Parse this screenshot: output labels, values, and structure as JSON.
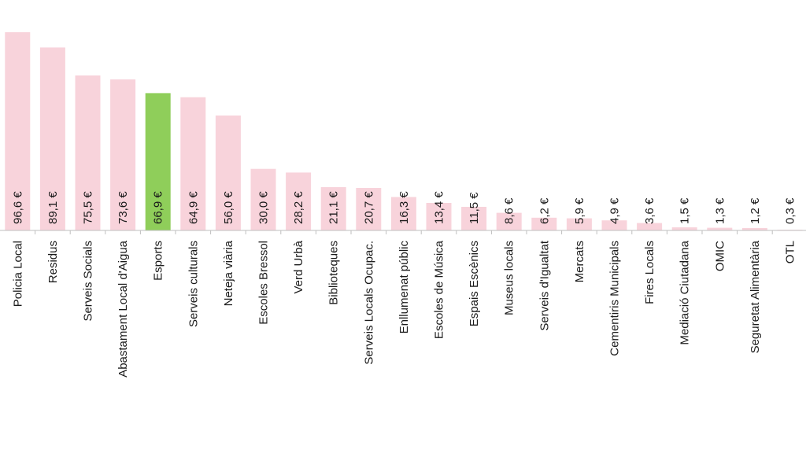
{
  "chart_data": {
    "type": "bar",
    "categories": [
      "Policia Local",
      "Residus",
      "Serveis Socials",
      "Abastament Local d'Aigua",
      "Esports",
      "Serveis culturals",
      "Neteja viària",
      "Escoles Bressol",
      "Verd Urbà",
      "Biblioteques",
      "Serveis Locals Ocupac.",
      "Enllumenat públic",
      "Escoles de Música",
      "Espais Escènics",
      "Museus locals",
      "Serveis d'Igualtat",
      "Mercats",
      "Cementiris Municipals",
      "Fires Locals",
      "Mediació Ciutadana",
      "OMIC",
      "Seguretat Alimentària",
      "OTL"
    ],
    "values": [
      96.6,
      89.1,
      75.5,
      73.6,
      66.9,
      64.9,
      56.0,
      30.0,
      28.2,
      21.1,
      20.7,
      16.3,
      13.4,
      11.5,
      8.6,
      6.2,
      5.9,
      4.9,
      3.6,
      1.5,
      1.3,
      1.2,
      0.3
    ],
    "value_labels": [
      "96,6 €",
      "89,1 €",
      "75,5 €",
      "73,6 €",
      "66,9 €",
      "64,9 €",
      "56,0 €",
      "30,0 €",
      "28,2 €",
      "21,1 €",
      "20,7 €",
      "16,3 €",
      "13,4 €",
      "11,5 €",
      "8,6 €",
      "6,2 €",
      "5,9 €",
      "4,9 €",
      "3,6 €",
      "1,5 €",
      "1,3 €",
      "1,2 €",
      "0,3 €"
    ],
    "highlight_index": 4,
    "colors": {
      "bar": "#f8d3db",
      "highlight": "#8fce5a",
      "axis": "#bfbfbf"
    },
    "ylim": [
      0,
      100
    ],
    "xlabel": "",
    "ylabel": "",
    "title": ""
  }
}
